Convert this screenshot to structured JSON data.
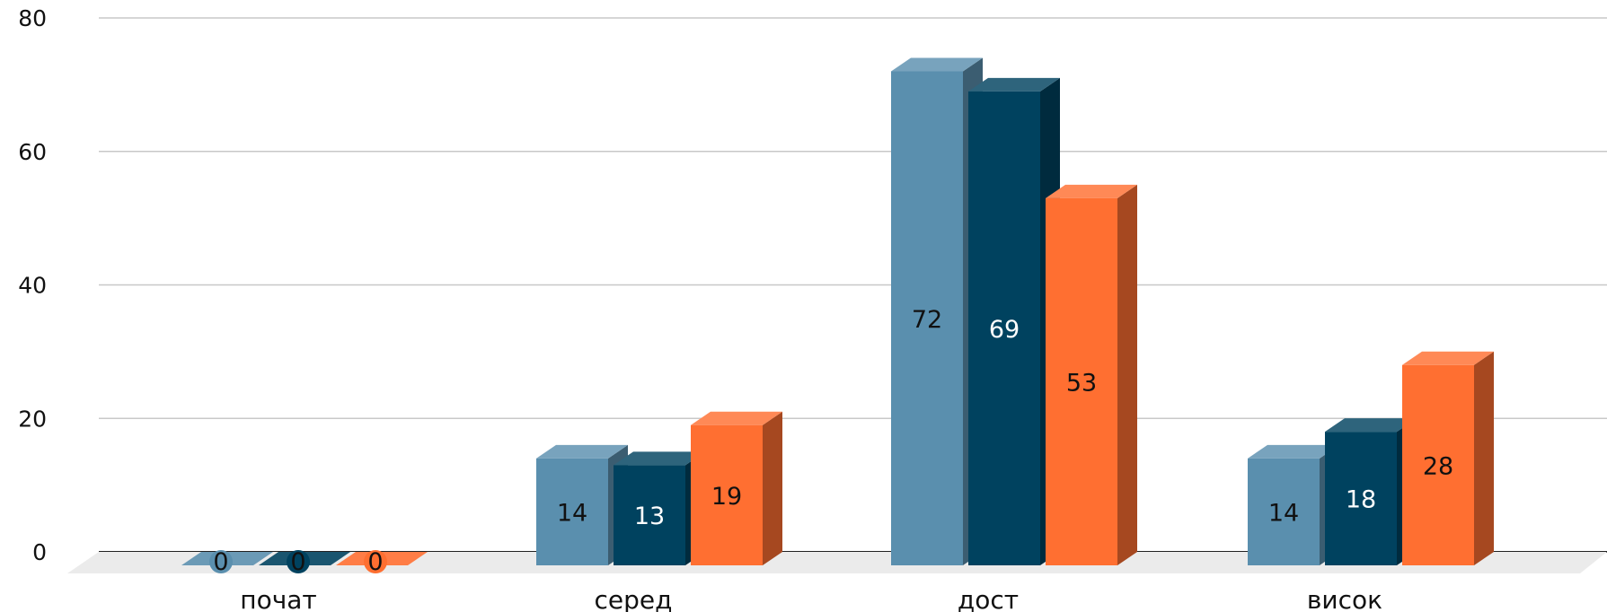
{
  "chart_data": {
    "type": "bar",
    "categories": [
      "почат",
      "серед",
      "дост",
      "висок"
    ],
    "series": [
      {
        "values": [
          0,
          14,
          72,
          14
        ]
      },
      {
        "values": [
          0,
          13,
          69,
          18
        ]
      },
      {
        "values": [
          0,
          19,
          53,
          28
        ]
      }
    ],
    "ylim": [
      0,
      80
    ],
    "yticks": [
      0,
      20,
      40,
      60,
      80
    ],
    "grid": true,
    "style": "3d",
    "colors": [
      "#5a8fae",
      "#00425f",
      "#ff6f31"
    ],
    "label_colors": [
      "#111111",
      "#ffffff",
      "#111111"
    ]
  }
}
